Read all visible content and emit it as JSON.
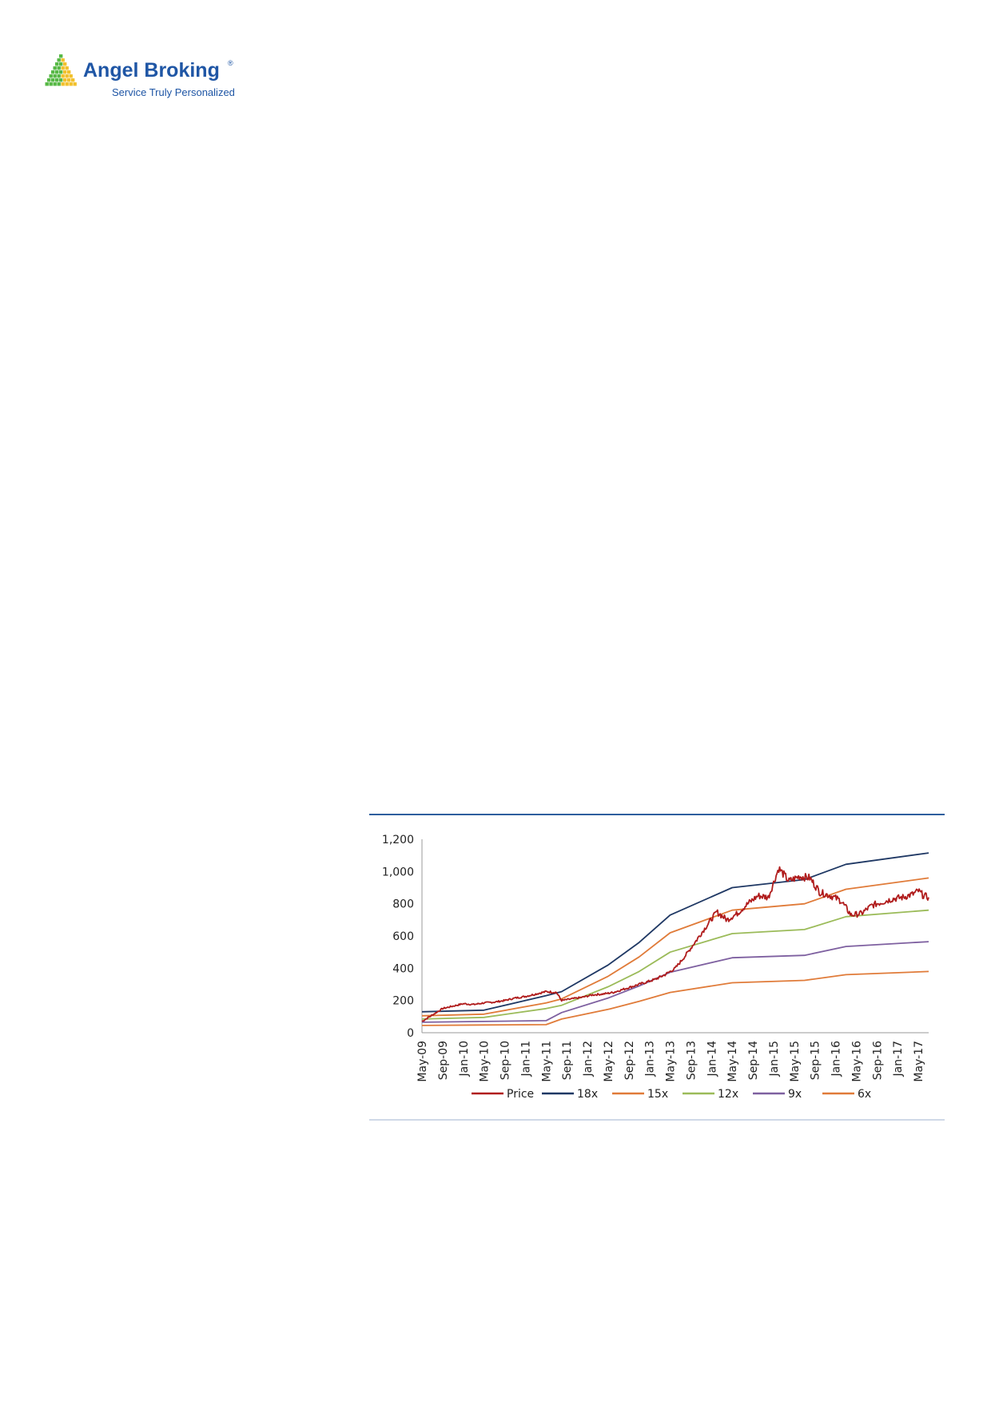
{
  "brand": {
    "name": "Angel Broking",
    "registered_mark": "®",
    "tagline": "Service Truly Personalized",
    "colors": {
      "green": "#58b947",
      "yellow": "#f2c12e",
      "blue": "#1f56a5"
    }
  },
  "chart_data": {
    "type": "line",
    "ylim": [
      0,
      1200
    ],
    "yticks": [
      "0",
      "200",
      "400",
      "600",
      "800",
      "1,000",
      "1,200"
    ],
    "yticks_values": [
      0,
      200,
      400,
      600,
      800,
      1000,
      1200
    ],
    "x_range": [
      "2009-05",
      "2017-07"
    ],
    "xticks": [
      "May-09",
      "Sep-09",
      "Jan-10",
      "May-10",
      "Sep-10",
      "Jan-11",
      "May-11",
      "Sep-11",
      "Jan-12",
      "May-12",
      "Sep-12",
      "Jan-13",
      "May-13",
      "Sep-13",
      "Jan-14",
      "May-14",
      "Sep-14",
      "Jan-15",
      "May-15",
      "Sep-15",
      "Jan-16",
      "May-16",
      "Sep-16",
      "Jan-17",
      "May-17"
    ],
    "grid": false,
    "legend_position": "bottom",
    "series": [
      {
        "name": "Price",
        "color": "#b01c1c",
        "points": [
          [
            "2009-05",
            70
          ],
          [
            "2009-07",
            110
          ],
          [
            "2009-09",
            150
          ],
          [
            "2009-11",
            165
          ],
          [
            "2010-01",
            180
          ],
          [
            "2010-03",
            175
          ],
          [
            "2010-05",
            185
          ],
          [
            "2010-07",
            190
          ],
          [
            "2010-09",
            200
          ],
          [
            "2010-11",
            215
          ],
          [
            "2011-01",
            225
          ],
          [
            "2011-03",
            240
          ],
          [
            "2011-05",
            255
          ],
          [
            "2011-07",
            250
          ],
          [
            "2011-08",
            200
          ],
          [
            "2011-10",
            210
          ],
          [
            "2011-12",
            220
          ],
          [
            "2012-02",
            235
          ],
          [
            "2012-04",
            240
          ],
          [
            "2012-06",
            250
          ],
          [
            "2012-08",
            270
          ],
          [
            "2012-10",
            290
          ],
          [
            "2012-12",
            310
          ],
          [
            "2013-02",
            330
          ],
          [
            "2013-04",
            360
          ],
          [
            "2013-06",
            400
          ],
          [
            "2013-08",
            480
          ],
          [
            "2013-10",
            570
          ],
          [
            "2013-12",
            660
          ],
          [
            "2014-02",
            750
          ],
          [
            "2014-04",
            700
          ],
          [
            "2014-06",
            740
          ],
          [
            "2014-08",
            800
          ],
          [
            "2014-10",
            850
          ],
          [
            "2014-12",
            840
          ],
          [
            "2015-02",
            1020
          ],
          [
            "2015-04",
            940
          ],
          [
            "2015-06",
            970
          ],
          [
            "2015-08",
            960
          ],
          [
            "2015-10",
            870
          ],
          [
            "2015-12",
            850
          ],
          [
            "2016-02",
            820
          ],
          [
            "2016-04",
            730
          ],
          [
            "2016-06",
            740
          ],
          [
            "2016-08",
            790
          ],
          [
            "2016-10",
            810
          ],
          [
            "2016-12",
            830
          ],
          [
            "2017-02",
            840
          ],
          [
            "2017-04",
            860
          ],
          [
            "2017-05",
            880
          ],
          [
            "2017-06",
            850
          ],
          [
            "2017-07",
            840
          ]
        ]
      },
      {
        "name": "18x",
        "color": "#1f3864",
        "points": [
          [
            "2009-05",
            130
          ],
          [
            "2010-05",
            140
          ],
          [
            "2011-05",
            230
          ],
          [
            "2011-08",
            255
          ],
          [
            "2012-05",
            420
          ],
          [
            "2012-11",
            560
          ],
          [
            "2013-05",
            730
          ],
          [
            "2014-05",
            900
          ],
          [
            "2015-07",
            950
          ],
          [
            "2016-03",
            1045
          ],
          [
            "2017-07",
            1115
          ]
        ]
      },
      {
        "name": "15x",
        "color": "#e07b39",
        "points": [
          [
            "2009-05",
            105
          ],
          [
            "2010-05",
            115
          ],
          [
            "2011-05",
            185
          ],
          [
            "2011-08",
            210
          ],
          [
            "2012-05",
            350
          ],
          [
            "2012-11",
            470
          ],
          [
            "2013-05",
            620
          ],
          [
            "2014-05",
            760
          ],
          [
            "2015-07",
            800
          ],
          [
            "2016-03",
            890
          ],
          [
            "2017-07",
            960
          ]
        ]
      },
      {
        "name": "12x",
        "color": "#9bbb59",
        "points": [
          [
            "2009-05",
            85
          ],
          [
            "2010-05",
            95
          ],
          [
            "2011-05",
            150
          ],
          [
            "2011-08",
            170
          ],
          [
            "2012-05",
            285
          ],
          [
            "2012-11",
            380
          ],
          [
            "2013-05",
            500
          ],
          [
            "2014-05",
            615
          ],
          [
            "2015-07",
            640
          ],
          [
            "2016-03",
            720
          ],
          [
            "2017-07",
            760
          ]
        ]
      },
      {
        "name": "9x",
        "color": "#7e60a0",
        "points": [
          [
            "2009-05",
            65
          ],
          [
            "2010-05",
            70
          ],
          [
            "2011-05",
            75
          ],
          [
            "2011-08",
            125
          ],
          [
            "2012-05",
            215
          ],
          [
            "2012-11",
            290
          ],
          [
            "2013-05",
            375
          ],
          [
            "2014-05",
            465
          ],
          [
            "2015-07",
            480
          ],
          [
            "2016-03",
            535
          ],
          [
            "2017-07",
            565
          ]
        ]
      },
      {
        "name": "6x",
        "color": "#e07b39",
        "points": [
          [
            "2009-05",
            45
          ],
          [
            "2010-05",
            48
          ],
          [
            "2011-05",
            50
          ],
          [
            "2011-08",
            85
          ],
          [
            "2012-05",
            145
          ],
          [
            "2012-11",
            195
          ],
          [
            "2013-05",
            250
          ],
          [
            "2014-05",
            310
          ],
          [
            "2015-07",
            325
          ],
          [
            "2016-03",
            360
          ],
          [
            "2017-07",
            380
          ]
        ]
      }
    ]
  }
}
